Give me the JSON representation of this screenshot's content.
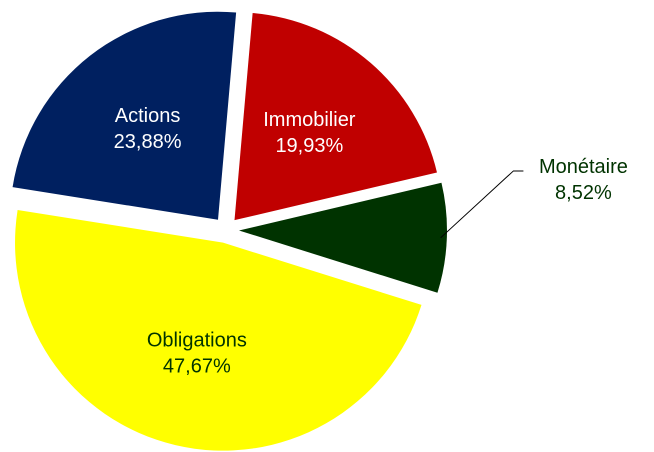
{
  "chart_data": {
    "type": "pie",
    "categories": [
      "Immobilier",
      "Monétaire",
      "Obligations",
      "Actions"
    ],
    "values": [
      19.93,
      8.52,
      47.67,
      23.88
    ],
    "value_labels": [
      "19,93%",
      "8,52%",
      "47,67%",
      "23,88%"
    ],
    "colors": [
      "#c00000",
      "#003300",
      "#ffff00",
      "#002060"
    ],
    "label_colors": [
      "#ffffff",
      "#003300",
      "#003300",
      "#ffffff"
    ]
  }
}
